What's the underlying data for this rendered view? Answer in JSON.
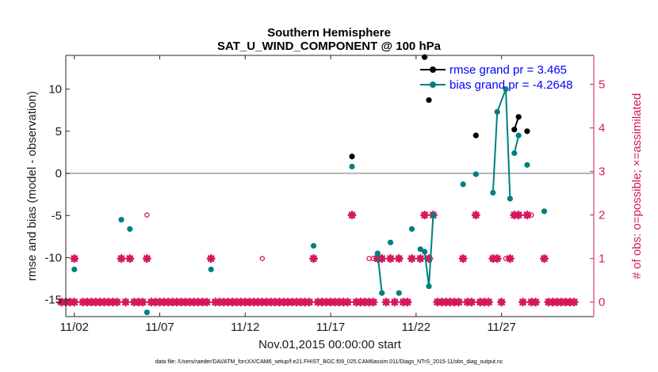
{
  "chart_data": {
    "type": "scatter",
    "title": "Southern Hemisphere",
    "subtitle": "SAT_U_WIND_COMPONENT @ 100 hPa",
    "xlabel": "Nov.01,2015 00:00:00 start",
    "ylabel": "rmse and bias (model - observation)",
    "ylabel_right": "# of obs: o=possible; ×=assimilated",
    "xlim": [
      0.5,
      31.4
    ],
    "ylim": [
      -17,
      14
    ],
    "ylim_right": [
      -0.3333,
      5.6667
    ],
    "yticks": [
      -15,
      -10,
      -5,
      0,
      5,
      10
    ],
    "yticks_right": [
      0,
      1,
      2,
      3,
      4,
      5
    ],
    "xticks": [
      1,
      6,
      11,
      16,
      21,
      26
    ],
    "xticklabels": [
      "11/02",
      "11/07",
      "11/12",
      "11/17",
      "11/22",
      "11/27"
    ],
    "zero_line": 0,
    "legend": [
      {
        "label": "rmse grand pr = 3.465",
        "color": "#000000"
      },
      {
        "label": "bias grand pr = -4.2648",
        "color": "#008080"
      }
    ],
    "colors": {
      "rmse": "#000000",
      "bias": "#008080",
      "obs": "#d6175e",
      "zero": "#a6a6a6"
    },
    "rmse_segments": [
      [
        [
          17.25,
          2.0
        ]
      ],
      [
        [
          21.5,
          13.8
        ]
      ],
      [
        [
          21.75,
          8.7
        ]
      ],
      [
        [
          24.5,
          4.5
        ]
      ],
      [
        [
          26.75,
          5.2
        ],
        [
          27.0,
          6.7
        ]
      ],
      [
        [
          27.5,
          5.0
        ]
      ]
    ],
    "bias_segments": [
      [
        [
          1.0,
          -11.4
        ]
      ],
      [
        [
          3.75,
          -5.5
        ]
      ],
      [
        [
          4.25,
          -6.6
        ]
      ],
      [
        [
          5.25,
          -16.5
        ]
      ],
      [
        [
          9.0,
          -11.4
        ]
      ],
      [
        [
          15.0,
          -8.6
        ]
      ],
      [
        [
          17.25,
          0.8
        ]
      ],
      [
        [
          18.75,
          -9.5
        ],
        [
          19.0,
          -14.2
        ]
      ],
      [
        [
          19.5,
          -8.2
        ]
      ],
      [
        [
          20.0,
          -14.2
        ]
      ],
      [
        [
          20.75,
          -6.6
        ]
      ],
      [
        [
          21.25,
          -9.0
        ],
        [
          21.5,
          -9.3
        ],
        [
          21.75,
          -13.4
        ],
        [
          22.0,
          -5.0
        ]
      ],
      [
        [
          23.75,
          -1.3
        ]
      ],
      [
        [
          24.5,
          -0.1
        ]
      ],
      [
        [
          25.5,
          -2.3
        ],
        [
          25.75,
          7.3
        ],
        [
          26.25,
          10.0
        ],
        [
          26.5,
          -3.0
        ]
      ],
      [
        [
          26.75,
          2.4
        ],
        [
          27.0,
          4.5
        ]
      ],
      [
        [
          27.5,
          1.0
        ]
      ],
      [
        [
          28.5,
          -4.5
        ]
      ]
    ],
    "obs_assimilated": {
      "count_0_times": [
        0.25,
        0.5,
        0.75,
        1.0,
        1.5,
        1.75,
        2.0,
        2.25,
        2.5,
        2.75,
        3.0,
        3.25,
        3.5,
        4.0,
        4.5,
        4.75,
        5.0,
        5.5,
        5.75,
        6.0,
        6.25,
        6.5,
        6.75,
        7.0,
        7.25,
        7.5,
        7.75,
        8.0,
        8.25,
        8.5,
        8.75,
        9.25,
        9.5,
        9.75,
        10.0,
        10.25,
        10.5,
        10.75,
        11.0,
        11.25,
        11.5,
        11.75,
        12.0,
        12.25,
        12.5,
        12.75,
        13.0,
        13.25,
        13.5,
        13.75,
        14.0,
        14.25,
        14.5,
        14.75,
        15.25,
        15.5,
        15.75,
        16.0,
        16.25,
        16.5,
        16.75,
        17.0,
        17.5,
        17.75,
        18.0,
        18.25,
        18.5,
        19.25,
        19.75,
        20.25,
        20.5,
        22.25,
        22.5,
        22.75,
        23.0,
        23.25,
        23.5,
        24.0,
        24.25,
        24.75,
        25.0,
        25.25,
        26.0,
        27.25,
        27.75,
        28.0,
        28.75,
        29.0,
        29.25,
        29.5,
        29.75,
        30.0,
        30.25
      ],
      "count_1_times": [
        1.0,
        3.75,
        4.25,
        5.25,
        9.0,
        15.0,
        18.75,
        19.0,
        19.5,
        20.0,
        20.75,
        21.25,
        21.75,
        23.75,
        25.5,
        25.75,
        26.5,
        28.5
      ],
      "count_2_times": [
        17.25,
        21.5,
        22.0,
        24.5,
        26.75,
        27.0,
        27.5
      ]
    },
    "obs_possible": {
      "count_1_times": [
        12.0,
        18.25,
        18.5,
        26.25
      ],
      "count_2_times": [
        5.25,
        27.75
      ]
    },
    "obs_possible_extra": {
      "count_5_times": [
        26.25
      ]
    }
  },
  "footnote": "data file: /Users/raeder/DAI/ATM_forcXX/CAM6_setup/f.e21.FHIST_BGC.f09_025.CAM6assim.011/Diags_NTrS_2015-11/obs_diag_output.nc"
}
